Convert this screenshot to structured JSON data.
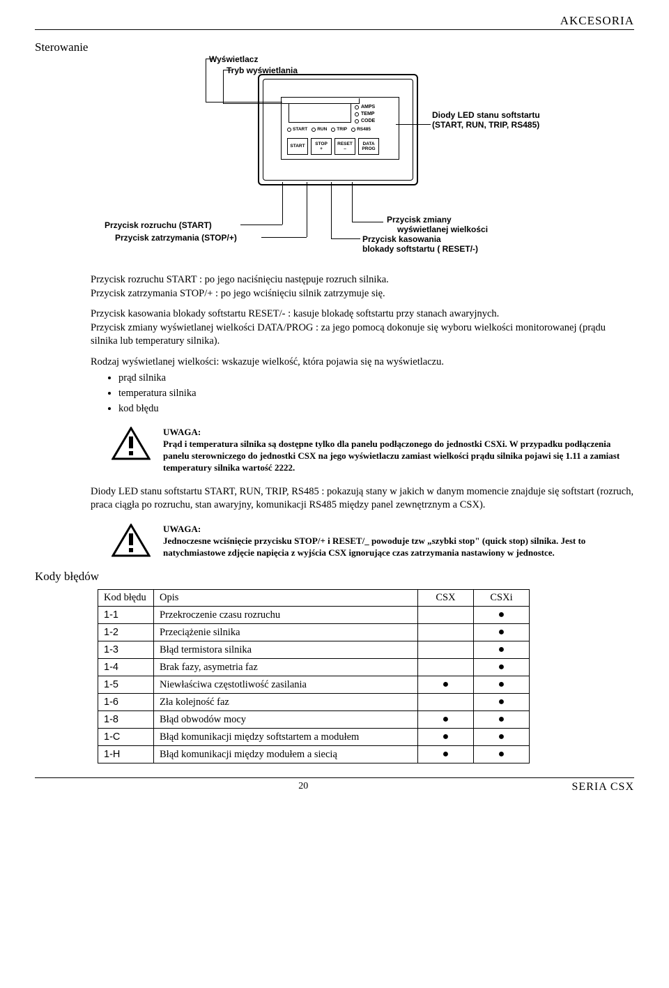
{
  "header": {
    "right": "AKCESORIA"
  },
  "section1": {
    "title": "Sterowanie"
  },
  "diagram": {
    "labels": {
      "display": "Wyświetlacz",
      "displayMode": "Tryb wyświetlania",
      "ledStatus1": "Diody LED stanu softstartu",
      "ledStatus2": "(START, RUN, TRIP, RS485)",
      "startBtn": "Przycisk rozruchu  (START)",
      "stopBtn": "Przycisk zatrzymania  (STOP/+)",
      "dataChange1": "Przycisk zmiany",
      "dataChange2": "wyświetlanej wielkości",
      "resetBtn1": "Przycisk kasowania",
      "resetBtn2": "blokady softstartu ( RESET/-)"
    },
    "leds": {
      "amps": "AMPS",
      "temp": "TEMP",
      "code": "CODE"
    },
    "status": {
      "start": "START",
      "run": "RUN",
      "trip": "TRIP",
      "rs485": "RS485"
    },
    "buttons": {
      "start": "START",
      "stop": "STOP",
      "stopSub": "+",
      "reset": "RESET",
      "resetSub": "–",
      "data": "DATA",
      "dataSub": "PROG"
    }
  },
  "body": {
    "p1": "Przycisk rozruchu  START : po jego naciśnięciu następuje rozruch silnika.",
    "p2": "Przycisk zatrzymania  STOP/+ : po jego wciśnięciu silnik zatrzymuje się.",
    "p3": "Przycisk kasowania blokady softstartu  RESET/- : kasuje blokadę softstartu przy stanach awaryjnych.",
    "p4": "Przycisk zmiany wyświetlanej wielkości  DATA/PROG : za jego pomocą dokonuje się wyboru wielkości monitorowanej (prądu silnika lub temperatury silnika).",
    "p5intro": "Rodzaj wyświetlanej wielkości: wskazuje wielkość, która pojawia się na wyświetlaczu.",
    "bullets": [
      "prąd silnika",
      "temperatura silnika",
      "kod błędu"
    ]
  },
  "warning1": {
    "title": "UWAGA:",
    "text": "Prąd i temperatura silnika są dostępne tylko dla panelu podłączonego do jednostki CSXi. W przypadku podłączenia panelu sterowniczego do jednostki CSX na jego wyświetlaczu zamiast wielkości prądu silnika pojawi się 1.11 a zamiast temperatury silnika wartość 2222."
  },
  "para_after_w1": "Diody LED stanu softstartu   START, RUN, TRIP, RS485 : pokazują stany w jakich w danym momencie znajduje się softstart (rozruch, praca ciągła po rozruchu, stan awaryjny, komunikacji RS485 między panel zewnętrznym a CSX).",
  "warning2": {
    "title": "UWAGA:",
    "text": "Jednoczesne wciśnięcie przycisku STOP/+ i RESET/_ powoduje tzw „szybki stop\" (quick stop) silnika. Jest to natychmiastowe zdjęcie napięcia z wyjścia CSX ignorujące czas zatrzymania nastawiony w jednostce."
  },
  "section2": {
    "title": "Kody błędów"
  },
  "table": {
    "headers": {
      "code": "Kod błędu",
      "desc": "Opis",
      "csx": "CSX",
      "csxi": "CSXi"
    },
    "rows": [
      {
        "code": "1-1",
        "desc": "Przekroczenie czasu rozruchu",
        "csx": false,
        "csxi": true
      },
      {
        "code": "1-2",
        "desc": "Przeciążenie silnika",
        "csx": false,
        "csxi": true
      },
      {
        "code": "1-3",
        "desc": "Błąd termistora silnika",
        "csx": false,
        "csxi": true
      },
      {
        "code": "1-4",
        "desc": "Brak fazy, asymetria faz",
        "csx": false,
        "csxi": true
      },
      {
        "code": "1-5",
        "desc": "Niewłaściwa częstotliwość zasilania",
        "csx": true,
        "csxi": true
      },
      {
        "code": "1-6",
        "desc": "Zła kolejność faz",
        "csx": false,
        "csxi": true
      },
      {
        "code": "1-8",
        "desc": "Błąd obwodów mocy",
        "csx": true,
        "csxi": true
      },
      {
        "code": "1-C",
        "desc": "Błąd komunikacji między softstartem a modułem",
        "csx": true,
        "csxi": true
      },
      {
        "code": "1-H",
        "desc": "Błąd komunikacji między modułem a siecią",
        "csx": true,
        "csxi": true
      }
    ]
  },
  "footer": {
    "page": "20",
    "series": "SERIA CSX"
  }
}
